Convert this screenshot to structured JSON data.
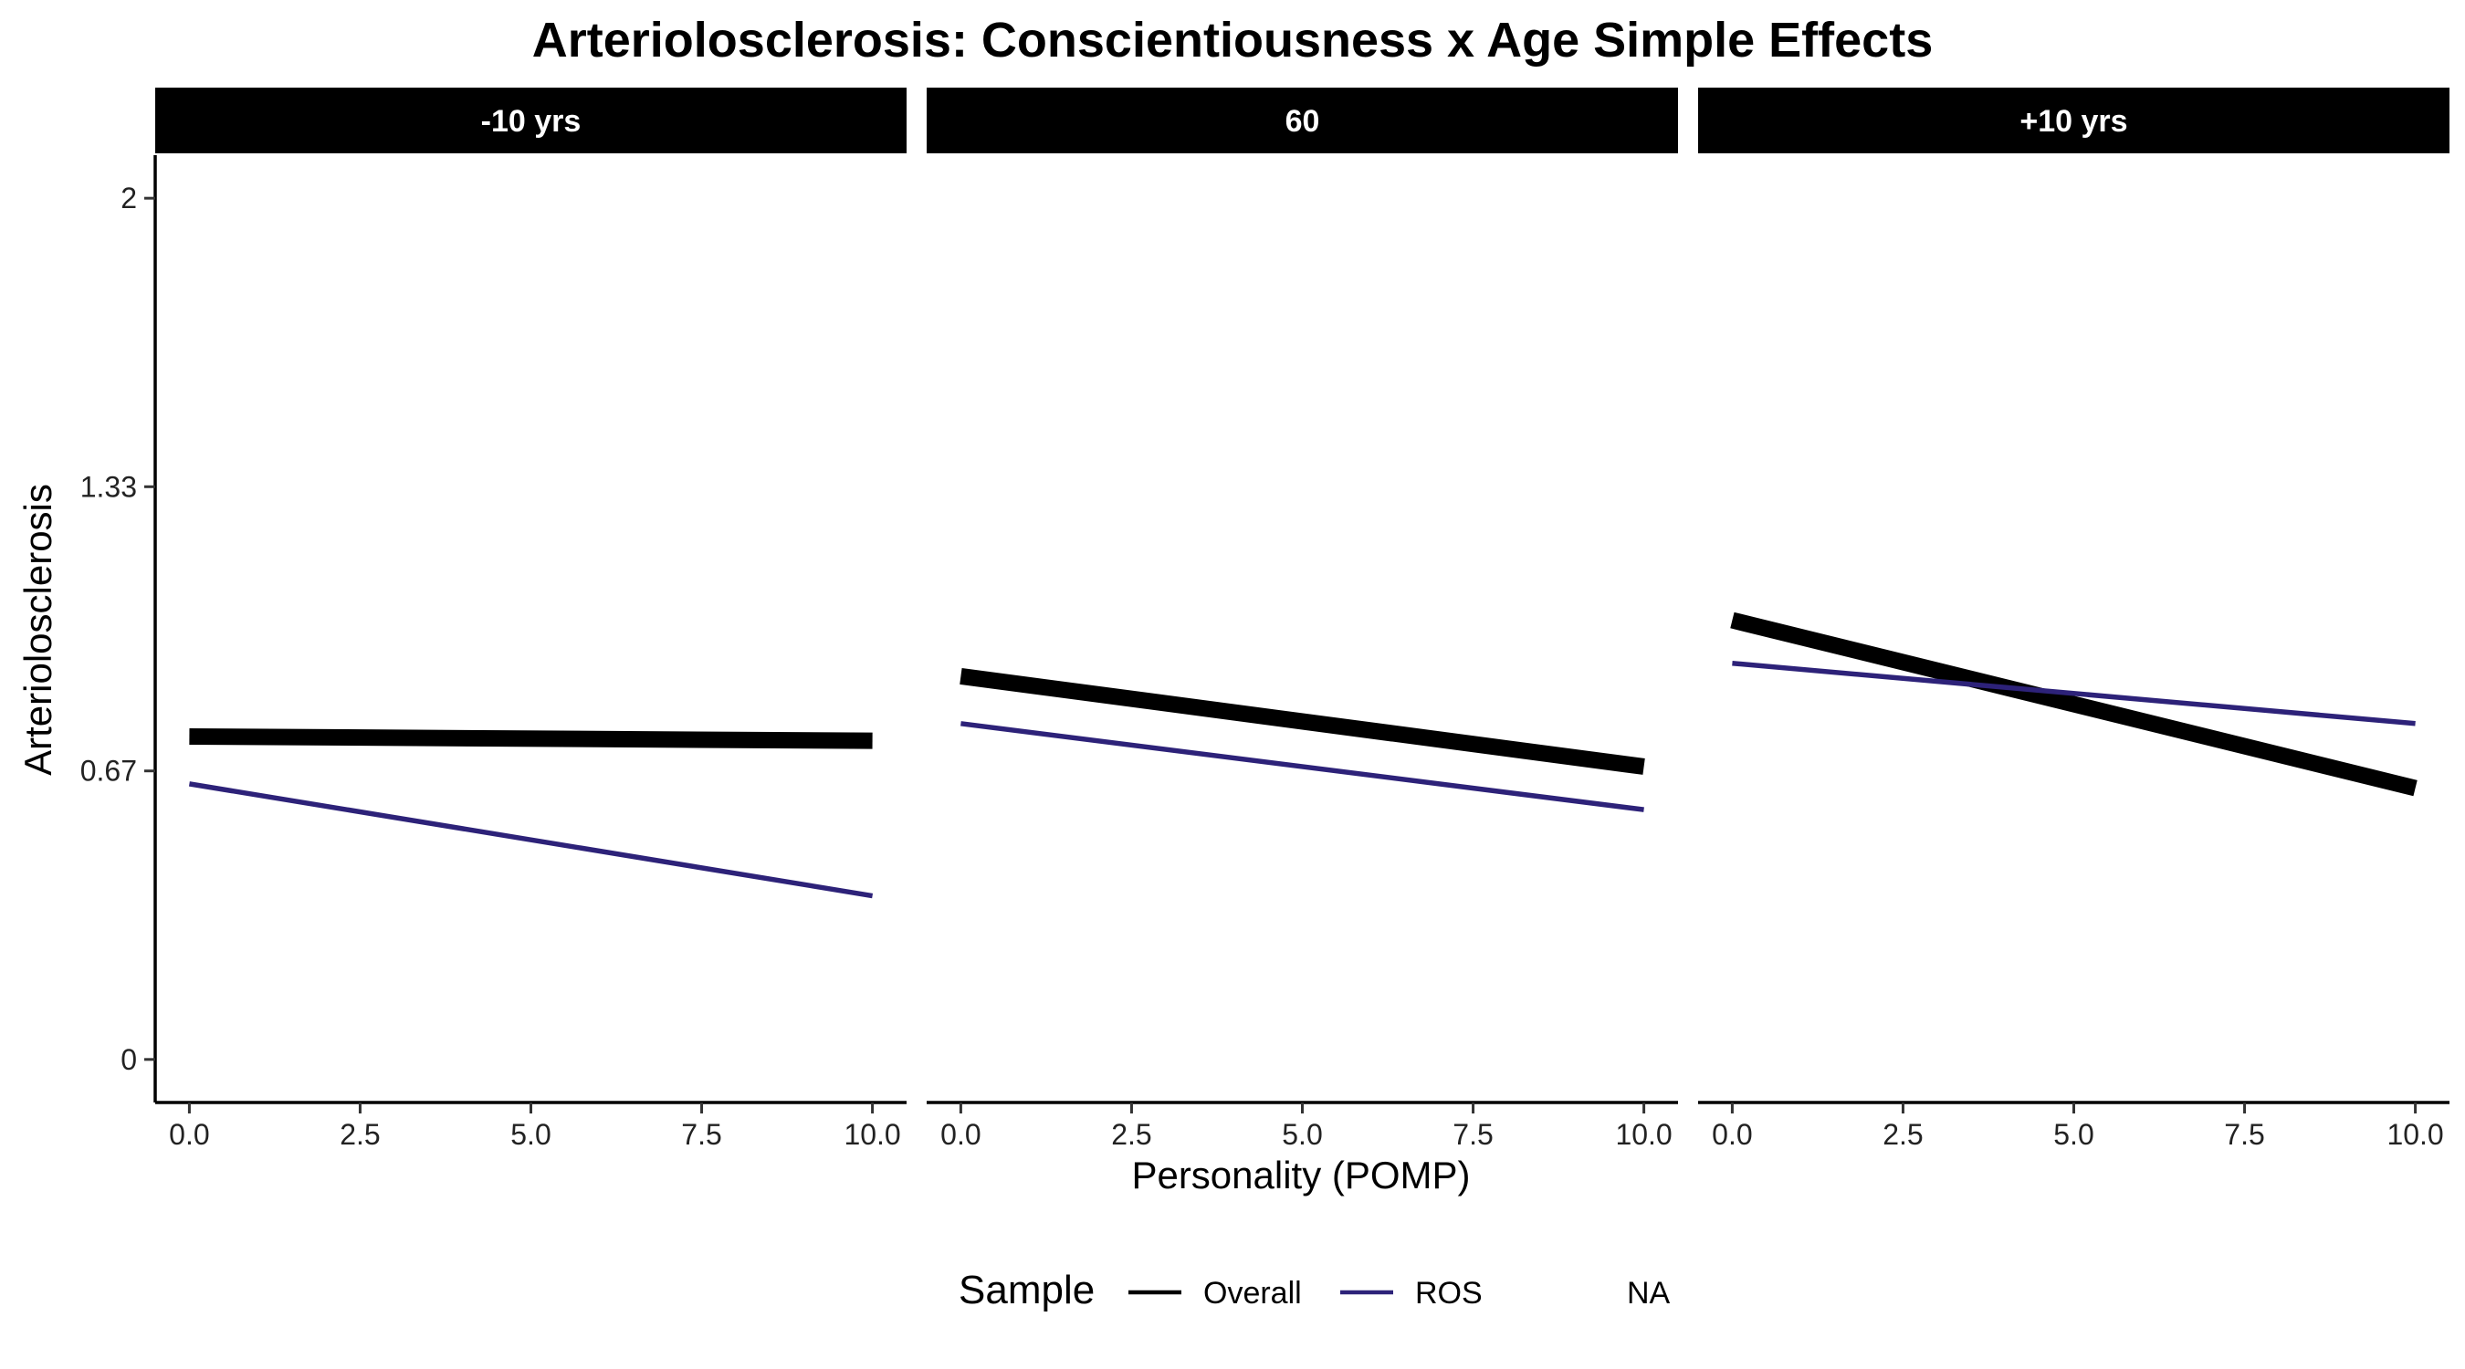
{
  "chart_data": {
    "type": "line",
    "title": "Arteriolosclerosis: Conscientiousness x Age Simple Effects",
    "xlabel": "Personality (POMP)",
    "ylabel": "Arteriolosclerosis",
    "xlim": [
      -0.5,
      10.5
    ],
    "ylim": [
      -0.1,
      2.1
    ],
    "x_ticks": [
      "0.0",
      "2.5",
      "5.0",
      "7.5",
      "10.0"
    ],
    "y_ticks": [
      "0",
      "0.67",
      "1.33",
      "2"
    ],
    "grid": false,
    "legend": {
      "position": "bottom",
      "title": "Sample",
      "entries": [
        "Overall",
        "ROS",
        "NA"
      ]
    },
    "series_colors": {
      "Overall": "#000000",
      "ROS": "#2d2279"
    },
    "panels": [
      {
        "label": "-10 yrs",
        "series": [
          {
            "name": "Overall",
            "x": [
              0,
              10
            ],
            "y": [
              0.75,
              0.74
            ]
          },
          {
            "name": "ROS",
            "x": [
              0,
              10
            ],
            "y": [
              0.64,
              0.38
            ]
          }
        ]
      },
      {
        "label": "60",
        "series": [
          {
            "name": "Overall",
            "x": [
              0,
              10
            ],
            "y": [
              0.89,
              0.68
            ]
          },
          {
            "name": "ROS",
            "x": [
              0,
              10
            ],
            "y": [
              0.78,
              0.58
            ]
          }
        ]
      },
      {
        "label": "+10 yrs",
        "series": [
          {
            "name": "Overall",
            "x": [
              0,
              10
            ],
            "y": [
              1.02,
              0.63
            ]
          },
          {
            "name": "ROS",
            "x": [
              0,
              10
            ],
            "y": [
              0.92,
              0.78
            ]
          }
        ]
      }
    ]
  }
}
